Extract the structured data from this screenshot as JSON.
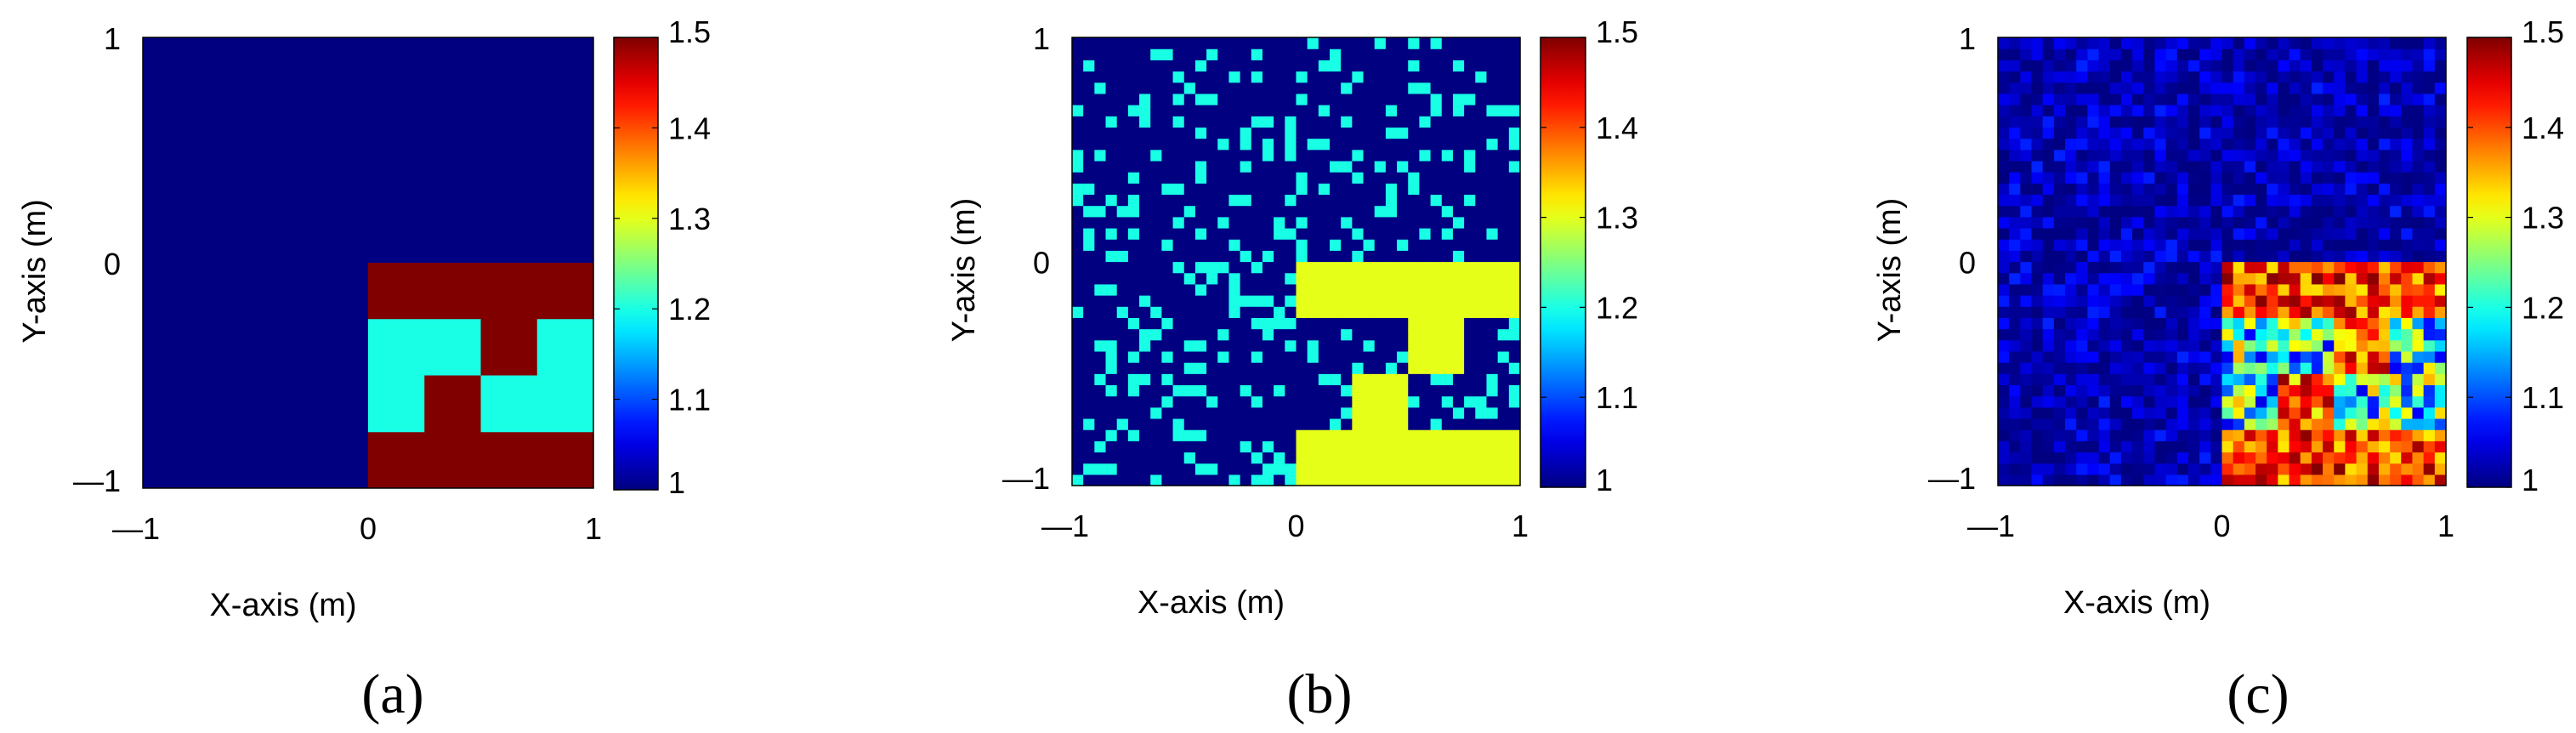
{
  "chart_data": [
    {
      "type": "heatmap",
      "panel_label": "(a)",
      "xlabel": "X-axis (m)",
      "ylabel": "Y-axis (m)",
      "xlim": [
        -1,
        1
      ],
      "ylim": [
        -1,
        1
      ],
      "x_ticks": [
        -1,
        0,
        1
      ],
      "y_ticks": [
        -1,
        0,
        1
      ],
      "x_tick_labels": [
        "—1",
        "0",
        "1"
      ],
      "y_tick_labels": [
        "—1",
        "0",
        "1"
      ],
      "colorbar": {
        "min": 1,
        "max": 1.5,
        "ticks": [
          1,
          1.1,
          1.2,
          1.3,
          1.4,
          1.5
        ],
        "tick_labels": [
          "1",
          "1.1",
          "1.2",
          "1.3",
          "1.4",
          "1.5"
        ],
        "colormap": "jet"
      },
      "grid": false,
      "background_value": 1.0,
      "regions": [
        {
          "x": [
            0,
            1
          ],
          "y": [
            -1,
            -0.75
          ],
          "value": 1.5
        },
        {
          "x": [
            0,
            1
          ],
          "y": [
            -0.25,
            0
          ],
          "value": 1.5
        },
        {
          "x": [
            0,
            0.5
          ],
          "y": [
            -0.5,
            -0.25
          ],
          "value": 1.2
        },
        {
          "x": [
            0.5,
            0.75
          ],
          "y": [
            -0.5,
            -0.25
          ],
          "value": 1.5
        },
        {
          "x": [
            0.75,
            1
          ],
          "y": [
            -0.5,
            -0.25
          ],
          "value": 1.2
        },
        {
          "x": [
            0,
            0.25
          ],
          "y": [
            -0.75,
            -0.5
          ],
          "value": 1.2
        },
        {
          "x": [
            0.25,
            0.5
          ],
          "y": [
            -0.75,
            -0.5
          ],
          "value": 1.5
        },
        {
          "x": [
            0.5,
            1
          ],
          "y": [
            -0.75,
            -0.5
          ],
          "value": 1.2
        }
      ]
    },
    {
      "type": "heatmap",
      "panel_label": "(b)",
      "xlabel": "X-axis (m)",
      "ylabel": "Y-axis (m)",
      "xlim": [
        -1,
        1
      ],
      "ylim": [
        -1,
        1
      ],
      "x_ticks": [
        -1,
        0,
        1
      ],
      "y_ticks": [
        -1,
        0,
        1
      ],
      "x_tick_labels": [
        "—1",
        "0",
        "1"
      ],
      "y_tick_labels": [
        "—1",
        "0",
        "1"
      ],
      "colorbar": {
        "min": 1,
        "max": 1.5,
        "ticks": [
          1,
          1.1,
          1.2,
          1.3,
          1.4,
          1.5
        ],
        "tick_labels": [
          "1",
          "1.1",
          "1.2",
          "1.3",
          "1.4",
          "1.5"
        ],
        "colormap": "jet"
      },
      "grid": false,
      "grid_cells": 40,
      "background_value": 1.0,
      "speckle_value": 1.2,
      "speckle_fraction": 0.22,
      "regions": [
        {
          "x": [
            0,
            1
          ],
          "y": [
            -1,
            -0.75
          ],
          "value": 1.3
        },
        {
          "x": [
            0,
            1
          ],
          "y": [
            -0.25,
            0
          ],
          "value": 1.3
        },
        {
          "x": [
            0.5,
            0.75
          ],
          "y": [
            -0.5,
            -0.25
          ],
          "value": 1.3
        },
        {
          "x": [
            0.25,
            0.5
          ],
          "y": [
            -0.75,
            -0.5
          ],
          "value": 1.3
        }
      ]
    },
    {
      "type": "heatmap",
      "panel_label": "(c)",
      "xlabel": "X-axis (m)",
      "ylabel": "Y-axis (m)",
      "xlim": [
        -1,
        1
      ],
      "ylim": [
        -1,
        1
      ],
      "x_ticks": [
        -1,
        0,
        1
      ],
      "y_ticks": [
        -1,
        0,
        1
      ],
      "x_tick_labels": [
        "—1",
        "0",
        "1"
      ],
      "y_tick_labels": [
        "—1",
        "0",
        "1"
      ],
      "colorbar": {
        "min": 1,
        "max": 1.5,
        "ticks": [
          1,
          1.1,
          1.2,
          1.3,
          1.4,
          1.5
        ],
        "tick_labels": [
          "1",
          "1.1",
          "1.2",
          "1.3",
          "1.4",
          "1.5"
        ],
        "colormap": "jet"
      },
      "grid": false,
      "grid_cells": 40,
      "background_value": 1.0,
      "background_noise": [
        1.0,
        1.08
      ],
      "regions": [
        {
          "x": [
            0,
            1
          ],
          "y": [
            -1,
            -0.75
          ],
          "value": 1.5,
          "noise": [
            1.32,
            1.5
          ]
        },
        {
          "x": [
            0,
            1
          ],
          "y": [
            -0.25,
            0
          ],
          "value": 1.5,
          "noise": [
            1.32,
            1.5
          ]
        },
        {
          "x": [
            0,
            0.5
          ],
          "y": [
            -0.5,
            -0.25
          ],
          "value": 1.2,
          "noise": [
            1.05,
            1.35
          ]
        },
        {
          "x": [
            0.5,
            0.75
          ],
          "y": [
            -0.5,
            -0.25
          ],
          "value": 1.5,
          "noise": [
            1.3,
            1.5
          ]
        },
        {
          "x": [
            0.75,
            1
          ],
          "y": [
            -0.5,
            -0.25
          ],
          "value": 1.2,
          "noise": [
            1.05,
            1.35
          ]
        },
        {
          "x": [
            0,
            0.25
          ],
          "y": [
            -0.75,
            -0.5
          ],
          "value": 1.2,
          "noise": [
            1.05,
            1.35
          ]
        },
        {
          "x": [
            0.25,
            0.5
          ],
          "y": [
            -0.75,
            -0.5
          ],
          "value": 1.5,
          "noise": [
            1.3,
            1.5
          ]
        },
        {
          "x": [
            0.5,
            1
          ],
          "y": [
            -0.75,
            -0.5
          ],
          "value": 1.2,
          "noise": [
            1.05,
            1.35
          ]
        }
      ]
    }
  ]
}
